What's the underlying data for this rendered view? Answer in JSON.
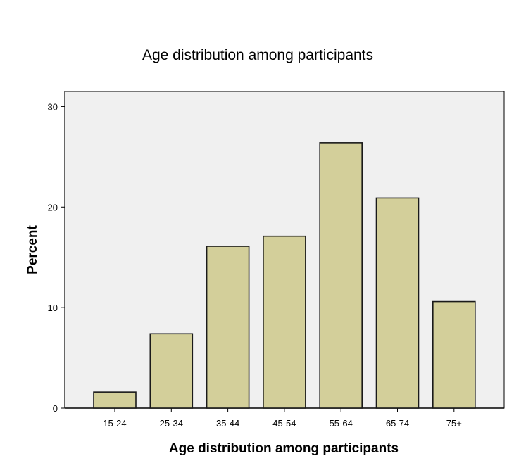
{
  "chart_data": {
    "type": "bar",
    "title": "Age distribution among participants",
    "xlabel": "Age distribution among participants",
    "ylabel": "Percent",
    "categories": [
      "15-24",
      "25-34",
      "35-44",
      "45-54",
      "55-64",
      "65-74",
      "75+"
    ],
    "values": [
      1.6,
      7.4,
      16.1,
      17.1,
      26.4,
      20.9,
      10.6
    ],
    "ylim": [
      0,
      31.5
    ],
    "yticks": [
      0,
      10,
      20,
      30
    ],
    "grid": false,
    "legend": "none",
    "colors": {
      "bar_fill": "#d3cf9a",
      "bar_stroke": "#1a1a1a",
      "plot_background": "#f0f0f0",
      "axis": "#000000"
    }
  }
}
